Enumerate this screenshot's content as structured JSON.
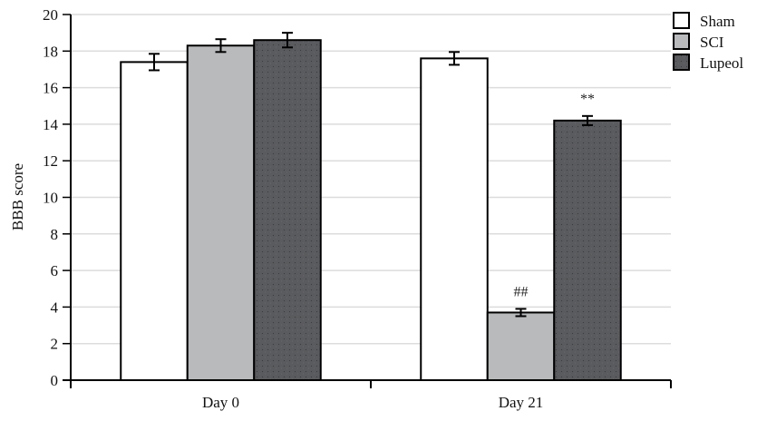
{
  "chart_data": {
    "type": "bar",
    "title": "",
    "xlabel": "",
    "ylabel": "BBB score",
    "ylim": [
      0,
      20
    ],
    "yticks": [
      0,
      2,
      4,
      6,
      8,
      10,
      12,
      14,
      16,
      18,
      20
    ],
    "grid": true,
    "legend_position": "top-right",
    "categories": [
      "Day 0",
      "Day 21"
    ],
    "series": [
      {
        "name": "Sham",
        "color": "#ffffff",
        "pattern": "none",
        "values": [
          17.4,
          17.6
        ],
        "errors": [
          0.45,
          0.35
        ]
      },
      {
        "name": "SCI",
        "color": "#b9babc",
        "pattern": "none",
        "values": [
          18.3,
          3.7
        ],
        "errors": [
          0.35,
          0.2
        ]
      },
      {
        "name": "Lupeol",
        "color": "#5a5b5e",
        "pattern": "dots",
        "values": [
          18.6,
          14.2
        ],
        "errors": [
          0.4,
          0.25
        ]
      }
    ],
    "annotations": [
      {
        "category": "Day 21",
        "series": "SCI",
        "text": "##"
      },
      {
        "category": "Day 21",
        "series": "Lupeol",
        "text": "**"
      }
    ]
  },
  "labels": {
    "ylabel": "BBB score",
    "legend": [
      "Sham",
      "SCI",
      "Lupeol"
    ],
    "categories": [
      "Day 0",
      "Day 21"
    ]
  }
}
